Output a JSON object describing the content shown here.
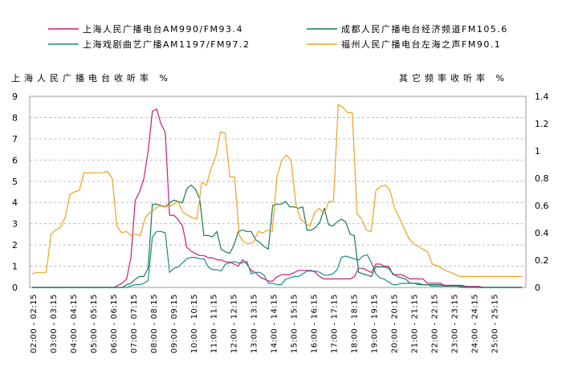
{
  "chart_data": {
    "type": "line",
    "left_axis_label": "上海人民广播电台收听率 %",
    "right_axis_label": "其它频率收听率 %",
    "left_ylim": [
      0,
      9
    ],
    "left_ticks": [
      "0",
      "1",
      "2",
      "3",
      "4",
      "5",
      "6",
      "7",
      "8",
      "9"
    ],
    "right_ylim": [
      0,
      1.4
    ],
    "right_ticks": [
      "0",
      "0.2",
      "0.4",
      "0.6",
      "0.8",
      "1",
      "1.2",
      "1.4"
    ],
    "grid": true,
    "legend_position": "top",
    "x_tick_labels": [
      "02:00 - 02:15",
      "03:00 - 03:15",
      "04:00 - 04:15",
      "05:00 - 05:15",
      "06:00 - 06:15",
      "07:00 - 07:15",
      "08:00 - 08:15",
      "09:00 - 09:15",
      "10:00 - 10:15",
      "11:00 - 11:15",
      "12:00 - 12:15",
      "13:00 - 13:15",
      "14:00 - 14:15",
      "15:00 - 15:15",
      "16:00 - 16:15",
      "17:00 - 17:15",
      "18:00 - 18:15",
      "19:00 - 19:15",
      "20:00 - 20:15",
      "21:00 - 21:15",
      "22:00 - 22:15",
      "23:00 - 23:15",
      "24:00 - 24:15",
      "25:00 - 25:15"
    ],
    "series": [
      {
        "name": "上海人民广播电台AM990/FM93.4",
        "axis": "left",
        "color": "#cc1a7a",
        "values": [
          0,
          0,
          0,
          0,
          0,
          0,
          0,
          0,
          0,
          0,
          0,
          0,
          0,
          0,
          0,
          0,
          0,
          0,
          0,
          0,
          0.1,
          0.2,
          0.4,
          1.4,
          4.1,
          4.5,
          5.1,
          6.4,
          8.3,
          8.4,
          7.7,
          7.3,
          3.4,
          3.4,
          3.2,
          2.9,
          1.9,
          1.7,
          1.6,
          1.5,
          1.5,
          1.4,
          1.4,
          1.3,
          1.3,
          1.2,
          1.2,
          1.1,
          1.0,
          1.3,
          1.1,
          0.8,
          0.7,
          0.5,
          0.4,
          0.3,
          0.3,
          0.5,
          0.6,
          0.6,
          0.6,
          0.7,
          0.8,
          0.8,
          0.8,
          0.8,
          0.7,
          0.5,
          0.4,
          0.4,
          0.4,
          0.4,
          0.4,
          0.4,
          0.4,
          0.5,
          0.9,
          0.9,
          0.8,
          0.7,
          1.1,
          1.1,
          1.0,
          1.0,
          0.6,
          0.6,
          0.6,
          0.5,
          0.4,
          0.4,
          0.4,
          0.4,
          0.2,
          0.2,
          0.2,
          0.2,
          0.1,
          0.1,
          0.1,
          0.1,
          0.1,
          0.05,
          0.05,
          0.05,
          0.05,
          0,
          0,
          0,
          0,
          0,
          0,
          0,
          0,
          0,
          0
        ],
        "note": ""
      },
      {
        "name": "上海戏剧曲艺广播AM1197/FM97.2",
        "axis": "right",
        "color": "#1b8a8a",
        "values": [
          0,
          0,
          0,
          0,
          0,
          0,
          0,
          0,
          0,
          0,
          0,
          0,
          0,
          0,
          0,
          0,
          0,
          0,
          0,
          0,
          0,
          0,
          0,
          0.01,
          0.02,
          0.02,
          0.03,
          0.05,
          0.37,
          0.41,
          0.41,
          0.4,
          0.11,
          0.14,
          0.15,
          0.18,
          0.21,
          0.22,
          0.22,
          0.21,
          0.21,
          0.15,
          0.13,
          0.13,
          0.12,
          0.17,
          0.18,
          0.19,
          0.18,
          0.18,
          0.19,
          0.1,
          0.11,
          0.11,
          0.09,
          0.03,
          0.03,
          0.02,
          0.02,
          0.06,
          0.07,
          0.08,
          0.08,
          0.1,
          0.12,
          0.12,
          0.12,
          0.11,
          0.09,
          0.09,
          0.1,
          0.13,
          0.22,
          0.23,
          0.22,
          0.21,
          0.2,
          0.23,
          0.24,
          0.18,
          0.1,
          0.07,
          0.06,
          0.04,
          0.02,
          0.02,
          0.03,
          0.03,
          0.03,
          0.03,
          0.03,
          0.02,
          0.02,
          0.01,
          0.01,
          0.01,
          0.01,
          0.01,
          0.01,
          0.01,
          0,
          0,
          0,
          0,
          0,
          0,
          0,
          0,
          0,
          0,
          0,
          0,
          0,
          0,
          0
        ],
        "note": ""
      },
      {
        "name": "成都人民广播电台经济频道FM105.6",
        "axis": "right",
        "color": "#157a5a",
        "values": [
          0,
          0,
          0,
          0,
          0,
          0,
          0,
          0,
          0,
          0,
          0,
          0,
          0,
          0,
          0,
          0,
          0,
          0,
          0,
          0,
          0,
          0,
          0.02,
          0.03,
          0.06,
          0.08,
          0.08,
          0.14,
          0.61,
          0.61,
          0.6,
          0.59,
          0.62,
          0.64,
          0.63,
          0.62,
          0.72,
          0.75,
          0.72,
          0.65,
          0.38,
          0.38,
          0.37,
          0.41,
          0.28,
          0.26,
          0.25,
          0.31,
          0.41,
          0.42,
          0.41,
          0.41,
          0.35,
          0.33,
          0.3,
          0.28,
          0.6,
          0.61,
          0.61,
          0.63,
          0.59,
          0.59,
          0.58,
          0.59,
          0.42,
          0.42,
          0.44,
          0.48,
          0.58,
          0.46,
          0.45,
          0.48,
          0.5,
          0.48,
          0.39,
          0.38,
          0.11,
          0.1,
          0.09,
          0.08,
          0.15,
          0.15,
          0.15,
          0.14,
          0.1,
          0.08,
          0.07,
          0.06,
          0.03,
          0.03,
          0.02,
          0.02,
          0.02,
          0.02,
          0.02,
          0.02,
          0.01,
          0.01,
          0.01,
          0.01,
          0.01,
          0,
          0,
          0,
          0,
          0,
          0,
          0,
          0,
          0,
          0,
          0,
          0,
          0,
          0
        ],
        "note": ""
      },
      {
        "name": "福州人民广播电台左海之声FM90.1",
        "axis": "right",
        "color": "#f0a020",
        "values": [
          0.1,
          0.11,
          0.11,
          0.11,
          0.39,
          0.42,
          0.44,
          0.51,
          0.68,
          0.7,
          0.71,
          0.84,
          0.84,
          0.84,
          0.84,
          0.84,
          0.85,
          0.8,
          0.45,
          0.4,
          0.41,
          0.38,
          0.39,
          0.38,
          0.51,
          0.55,
          0.57,
          0.6,
          0.59,
          0.59,
          0.61,
          0.63,
          0.55,
          0.53,
          0.51,
          0.5,
          0.77,
          0.75,
          0.87,
          0.96,
          1.14,
          1.13,
          0.81,
          0.81,
          0.38,
          0.33,
          0.32,
          0.33,
          0.41,
          0.4,
          0.42,
          0.41,
          0.81,
          0.93,
          0.97,
          0.93,
          0.61,
          0.5,
          0.47,
          0.45,
          0.55,
          0.58,
          0.54,
          0.63,
          0.63,
          1.34,
          1.32,
          1.28,
          1.28,
          0.54,
          0.5,
          0.42,
          0.41,
          0.71,
          0.74,
          0.75,
          0.71,
          0.58,
          0.51,
          0.43,
          0.36,
          0.32,
          0.3,
          0.28,
          0.26,
          0.17,
          0.16,
          0.14,
          0.12,
          0.11,
          0.09,
          0.08,
          0.08,
          0.08,
          0.08,
          0.08,
          0.08,
          0.08,
          0.08,
          0.08,
          0.08,
          0.08,
          0.08,
          0.08,
          0.08
        ],
        "note": ""
      }
    ]
  }
}
